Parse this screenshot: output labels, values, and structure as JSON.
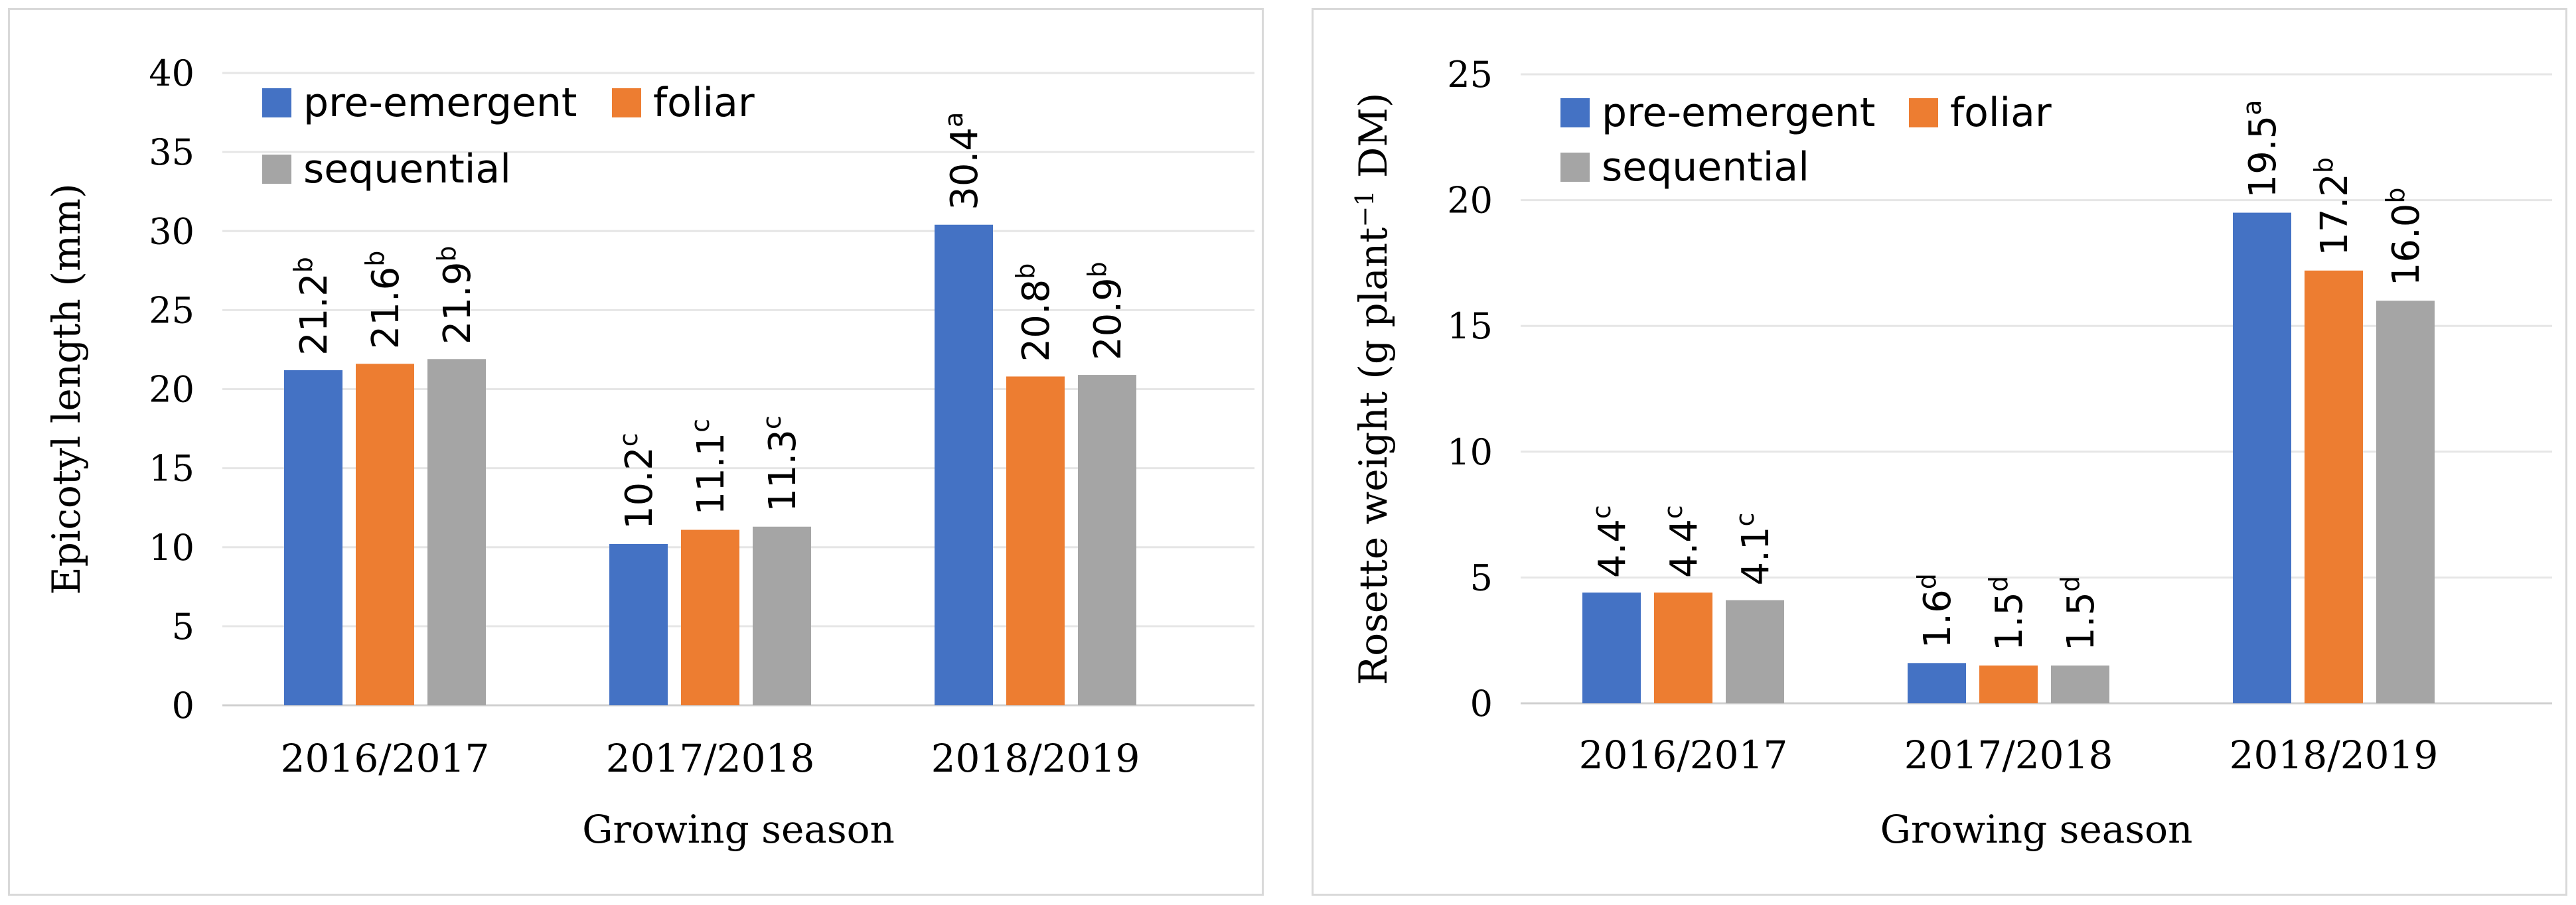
{
  "chart_data": [
    {
      "type": "bar",
      "title": "",
      "xlabel": "Growing season",
      "ylabel": "Epicotyl length (mm)",
      "ylim": [
        0,
        40
      ],
      "yticks": [
        0,
        5,
        10,
        15,
        20,
        25,
        30,
        35,
        40
      ],
      "grid": true,
      "legend_position": "top-left",
      "categories": [
        "2016/2017",
        "2017/2018",
        "2018/2019"
      ],
      "series": [
        {
          "name": "pre-emergent",
          "color": "#4472C4",
          "values": [
            21.2,
            10.2,
            30.4
          ],
          "labels": [
            "21.2",
            "10.2",
            "30.4"
          ],
          "letters": [
            "b",
            "c",
            "a"
          ]
        },
        {
          "name": "foliar",
          "color": "#ED7D31",
          "values": [
            21.6,
            11.1,
            20.8
          ],
          "labels": [
            "21.6",
            "11.1",
            "20.8"
          ],
          "letters": [
            "b",
            "c",
            "b"
          ]
        },
        {
          "name": "sequential",
          "color": "#A5A5A5",
          "values": [
            21.9,
            11.3,
            20.9
          ],
          "labels": [
            "21.9",
            "11.3",
            "20.9"
          ],
          "letters": [
            "b",
            "c",
            "b"
          ]
        }
      ]
    },
    {
      "type": "bar",
      "title": "",
      "xlabel": "Growing season",
      "ylabel_pre": "Rosette weight (g plant",
      "ylabel_sup": "−1",
      "ylabel_post": " DM)",
      "ylim": [
        0,
        25
      ],
      "yticks": [
        0,
        5,
        10,
        15,
        20,
        25
      ],
      "grid": true,
      "legend_position": "top-left",
      "categories": [
        "2016/2017",
        "2017/2018",
        "2018/2019"
      ],
      "series": [
        {
          "name": "pre-emergent",
          "color": "#4472C4",
          "values": [
            4.4,
            1.6,
            19.5
          ],
          "labels": [
            "4.4",
            "1.6",
            "19.5"
          ],
          "letters": [
            "c",
            "d",
            "a"
          ]
        },
        {
          "name": "foliar",
          "color": "#ED7D31",
          "values": [
            4.4,
            1.5,
            17.2
          ],
          "labels": [
            "4.4",
            "1.5",
            "17.2"
          ],
          "letters": [
            "c",
            "d",
            "b"
          ]
        },
        {
          "name": "sequential",
          "color": "#A5A5A5",
          "values": [
            4.1,
            1.5,
            16.0
          ],
          "labels": [
            "4.1",
            "1.5",
            "16.0"
          ],
          "letters": [
            "c",
            "d",
            "b"
          ]
        }
      ]
    }
  ]
}
